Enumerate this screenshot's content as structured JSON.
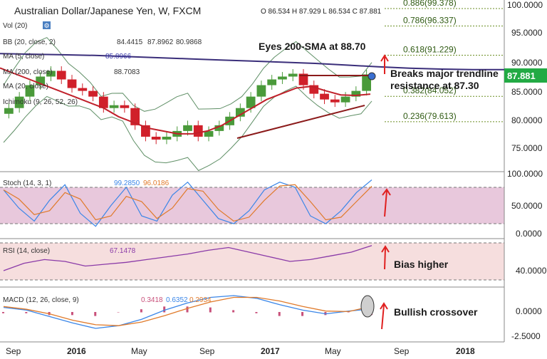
{
  "header": {
    "title": "Australian Dollar/Japanese Yen, W, FXCM",
    "ohlc": "O 86.534 H 87.929 L 86.534 C 87.881",
    "vol_label": "Vol (20)"
  },
  "indicators": {
    "bb": {
      "label": "BB (20, close, 2)",
      "values": [
        "84.4415",
        "87.8962",
        "80.9868"
      ],
      "colors": [
        "#6a7bd6",
        "#6a7bd6",
        "#6a7bd6"
      ]
    },
    "ma5": {
      "label": "MA (5, close)",
      "value": "85.8966"
    },
    "ma200": {
      "label": "MA (200, close)",
      "value": "88.7083"
    },
    "ma20": {
      "label": "MA (20, close)"
    },
    "ichimoku": {
      "label": "Ichimoku (9, 26, 52, 26)"
    }
  },
  "price_axis": {
    "ticks": [
      "100.0000",
      "95.0000",
      "90.0000",
      "85.0000",
      "80.0000",
      "75.0000"
    ],
    "current_price": "87.881"
  },
  "fib_levels": [
    {
      "label": "0.886(99.378)",
      "value": 99.378
    },
    {
      "label": "0.786(96.337)",
      "value": 96.337
    },
    {
      "label": "0.618(91.229)",
      "value": 91.229
    },
    {
      "label": "0.382(84.052)",
      "value": 84.052
    },
    {
      "label": "0.236(79.613)",
      "value": 79.613
    }
  ],
  "annotations": {
    "sma_note": "Eyes 200-SMA at 88.70",
    "trendline_note_1": "Breaks major trendline",
    "trendline_note_2": "resistance at 87.30",
    "rsi_note": "Bias higher",
    "macd_note": "Bullish crossover"
  },
  "stoch_panel": {
    "label": "Stoch (14, 3, 1)",
    "values": [
      "99.2850",
      "96.0186"
    ],
    "ticks": [
      "100.0000",
      "50.0000",
      "0.0000"
    ]
  },
  "rsi_panel": {
    "label": "RSI (14, close)",
    "value": "67.1478",
    "ticks": [
      "40.0000"
    ]
  },
  "macd_panel": {
    "label": "MACD (12, 26, close, 9)",
    "values": [
      "0.3418",
      "0.6352",
      "0.2934"
    ],
    "ticks": [
      "0.0000",
      "-2.5000"
    ]
  },
  "time_axis": {
    "labels": [
      "Sep",
      "2016",
      "May",
      "Sep",
      "2017",
      "May",
      "Sep",
      "2018"
    ]
  },
  "colors": {
    "candle_up": "#4a9a3a",
    "candle_down": "#d0202a",
    "ma200": "#3a2e7a",
    "ma20": "#c0202a",
    "bb": "#5f8f66",
    "fib": "#6b8e23",
    "stoch_k": "#3a86e8",
    "stoch_d": "#e07a2a",
    "rsi": "#8a3aa8",
    "macd": "#3a86e8",
    "signal": "#e07a2a",
    "hist": "#c8507a",
    "arrow": "#e02020",
    "current_badge": "#22aa44"
  },
  "chart_data": {
    "type": "candlestick",
    "title": "Australian Dollar/Japanese Yen, W, FXCM",
    "x_labels": [
      "Sep",
      "2016",
      "May",
      "Sep",
      "2017",
      "May",
      "Sep",
      "2018"
    ],
    "ylim": [
      72,
      101
    ],
    "price_close_path": [
      82,
      84,
      86,
      87.5,
      88.5,
      87,
      85.5,
      85,
      84,
      82,
      82.5,
      82,
      79,
      77,
      76.5,
      77,
      78,
      79,
      77,
      78,
      79,
      80.5,
      82,
      84,
      86,
      87,
      87.5,
      88,
      86,
      84.5,
      83.5,
      83,
      84,
      85,
      87.881
    ],
    "ma200_path": [
      91.5,
      91.4,
      91.3,
      91.2,
      91.0,
      90.8,
      90.6,
      90.4,
      90.2,
      90.0,
      89.8,
      89.5,
      89.2,
      88.95,
      88.8,
      88.72,
      88.7083
    ],
    "ma20_path": [
      89,
      88,
      87,
      86,
      85,
      84,
      83,
      82,
      80.5,
      79.5,
      78.5,
      78,
      77.5,
      77.5,
      78,
      79,
      80.5,
      82,
      83.5,
      84.5,
      85.5,
      85.8,
      85,
      84.3,
      84.2,
      84.4415
    ],
    "stoch_path": [
      80,
      45,
      20,
      60,
      90,
      35,
      10,
      50,
      85,
      30,
      20,
      70,
      95,
      60,
      25,
      15,
      40,
      80,
      95,
      85,
      30,
      15,
      40,
      75,
      99.285
    ],
    "rsi_path": [
      40,
      48,
      52,
      50,
      45,
      47,
      49,
      52,
      55,
      58,
      62,
      65,
      60,
      55,
      50,
      52,
      56,
      60,
      67.1478
    ],
    "macd_path": [
      0.5,
      0.2,
      -0.5,
      -1.2,
      -1.8,
      -1.5,
      -0.8,
      0.2,
      1.0,
      1.6,
      1.8,
      1.5,
      0.8,
      0.2,
      -0.2,
      0.1,
      0.3418
    ],
    "signal_path": [
      0.6,
      0.3,
      -0.2,
      -0.9,
      -1.4,
      -1.5,
      -1.1,
      -0.4,
      0.4,
      1.1,
      1.6,
      1.6,
      1.2,
      0.6,
      0.1,
      0.05,
      0.6352
    ]
  }
}
